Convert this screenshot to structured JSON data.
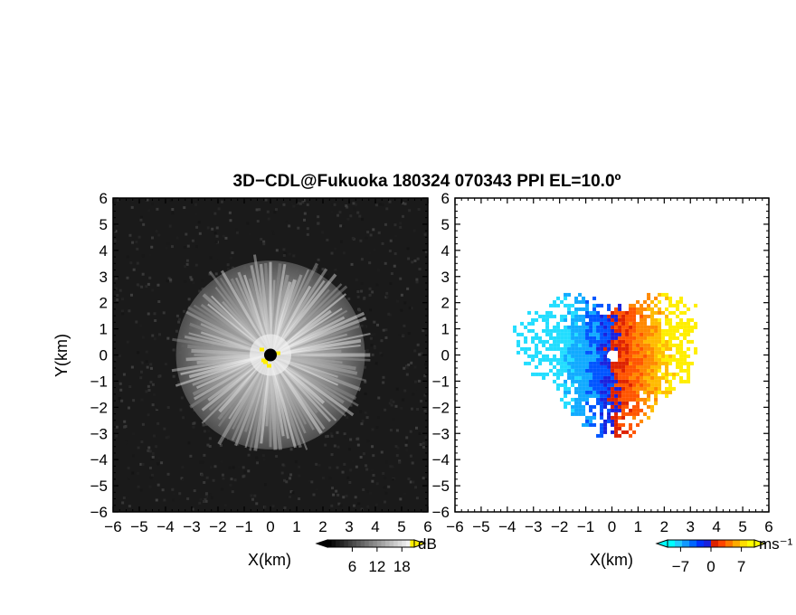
{
  "title": "3D−CDL@Fukuoka 180324 070343 PPI EL=10.0º",
  "chart_data": [
    {
      "type": "heatmap",
      "name": "reflectivity-panel",
      "xlabel": "X(km)",
      "ylabel": "Y(km)",
      "xlim": [
        -6,
        6
      ],
      "ylim": [
        -6,
        6
      ],
      "xticks": [
        "−6",
        "−5",
        "−4",
        "−3",
        "−2",
        "−1",
        "0",
        "1",
        "2",
        "3",
        "4",
        "5",
        "6"
      ],
      "yticks": [
        "−6",
        "−5",
        "−4",
        "−3",
        "−2",
        "−1",
        "0",
        "1",
        "2",
        "3",
        "4",
        "5",
        "6"
      ],
      "background": "#1a1a1a",
      "echo_radius_km": 3.6,
      "colorbar": {
        "unit": "dB",
        "ticklabels": [
          "6",
          "12",
          "18"
        ],
        "tickvalues": [
          6,
          12,
          18
        ],
        "range": [
          0,
          21
        ],
        "colors": [
          "#000000",
          "#ffffff",
          "#ffee00"
        ]
      }
    },
    {
      "type": "heatmap",
      "name": "velocity-panel",
      "xlabel": "X(km)",
      "ylabel": "",
      "xlim": [
        -6,
        6
      ],
      "ylim": [
        -6,
        6
      ],
      "xticks": [
        "−6",
        "−5",
        "−4",
        "−3",
        "−2",
        "−1",
        "0",
        "1",
        "2",
        "3",
        "4",
        "5",
        "6"
      ],
      "yticks": [
        "−6",
        "−5",
        "−4",
        "−3",
        "−2",
        "−1",
        "0",
        "1",
        "2",
        "3",
        "4",
        "5",
        "6"
      ],
      "background": "#ffffff",
      "colorbar": {
        "unit": "ms⁻¹",
        "ticklabels": [
          "−7",
          "0",
          "7"
        ],
        "tickvalues": [
          -7,
          0,
          7
        ],
        "range": [
          -10,
          10
        ],
        "colors": [
          "#00ffff",
          "#0033ff",
          "#ff3300",
          "#ffff00"
        ]
      }
    }
  ]
}
